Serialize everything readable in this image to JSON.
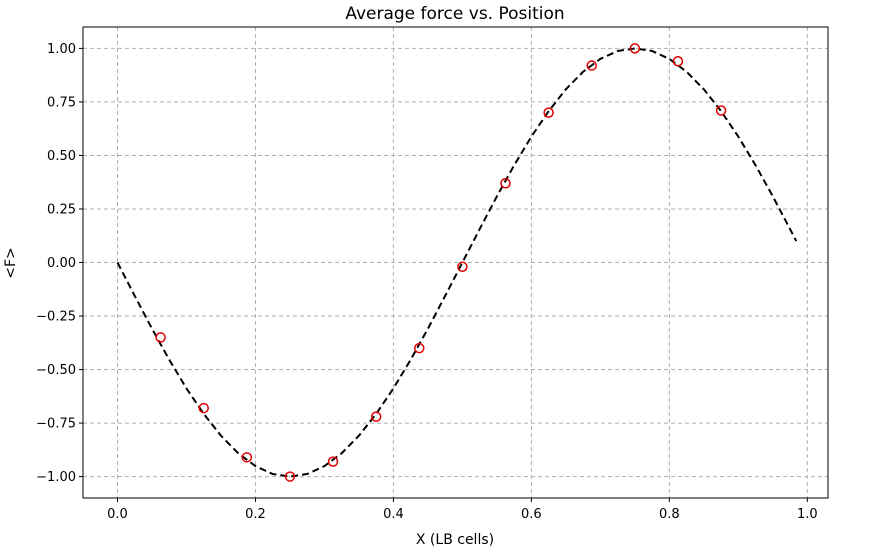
{
  "chart_data": {
    "type": "scatter",
    "title": "Average force vs. Position",
    "xlabel": "X (LB cells)",
    "ylabel": "<F>",
    "xlim": [
      -0.05,
      1.03
    ],
    "ylim": [
      -1.1,
      1.1
    ],
    "grid": true,
    "x_ticks": [
      0.0,
      0.2,
      0.4,
      0.6,
      0.8,
      1.0
    ],
    "x_tick_labels": [
      "0.0",
      "0.2",
      "0.4",
      "0.6",
      "0.8",
      "1.0"
    ],
    "y_ticks": [
      -1.0,
      -0.75,
      -0.5,
      -0.25,
      0.0,
      0.25,
      0.5,
      0.75,
      1.0
    ],
    "y_tick_labels": [
      "−1.00",
      "−0.75",
      "−0.50",
      "−0.25",
      "0.00",
      "0.25",
      "0.50",
      "0.75",
      "1.00"
    ],
    "series": [
      {
        "kind": "line",
        "style": "dashed",
        "color": "#000000",
        "x": [
          0.0,
          0.025,
          0.05,
          0.075,
          0.1,
          0.125,
          0.15,
          0.175,
          0.2,
          0.225,
          0.25,
          0.275,
          0.3,
          0.325,
          0.35,
          0.375,
          0.4,
          0.425,
          0.45,
          0.475,
          0.5,
          0.525,
          0.55,
          0.575,
          0.6,
          0.625,
          0.65,
          0.675,
          0.7,
          0.725,
          0.75,
          0.775,
          0.8,
          0.825,
          0.85,
          0.875,
          0.9,
          0.925,
          0.95,
          0.975,
          0.984
        ],
        "y": [
          0.0,
          -0.156,
          -0.309,
          -0.454,
          -0.588,
          -0.707,
          -0.809,
          -0.891,
          -0.951,
          -0.988,
          -1.0,
          -0.988,
          -0.951,
          -0.891,
          -0.809,
          -0.707,
          -0.588,
          -0.454,
          -0.309,
          -0.156,
          0.0,
          0.156,
          0.309,
          0.454,
          0.588,
          0.707,
          0.809,
          0.891,
          0.951,
          0.988,
          1.0,
          0.988,
          0.951,
          0.891,
          0.809,
          0.707,
          0.588,
          0.454,
          0.309,
          0.156,
          0.1
        ]
      },
      {
        "kind": "scatter",
        "marker": "open-circle",
        "color": "#e00000",
        "x": [
          0.0625,
          0.125,
          0.1875,
          0.25,
          0.3125,
          0.375,
          0.4375,
          0.5,
          0.5625,
          0.625,
          0.6875,
          0.75,
          0.8125,
          0.875
        ],
        "y": [
          -0.35,
          -0.68,
          -0.91,
          -1.0,
          -0.93,
          -0.72,
          -0.4,
          -0.02,
          0.37,
          0.7,
          0.92,
          1.0,
          0.94,
          0.71
        ]
      }
    ]
  }
}
